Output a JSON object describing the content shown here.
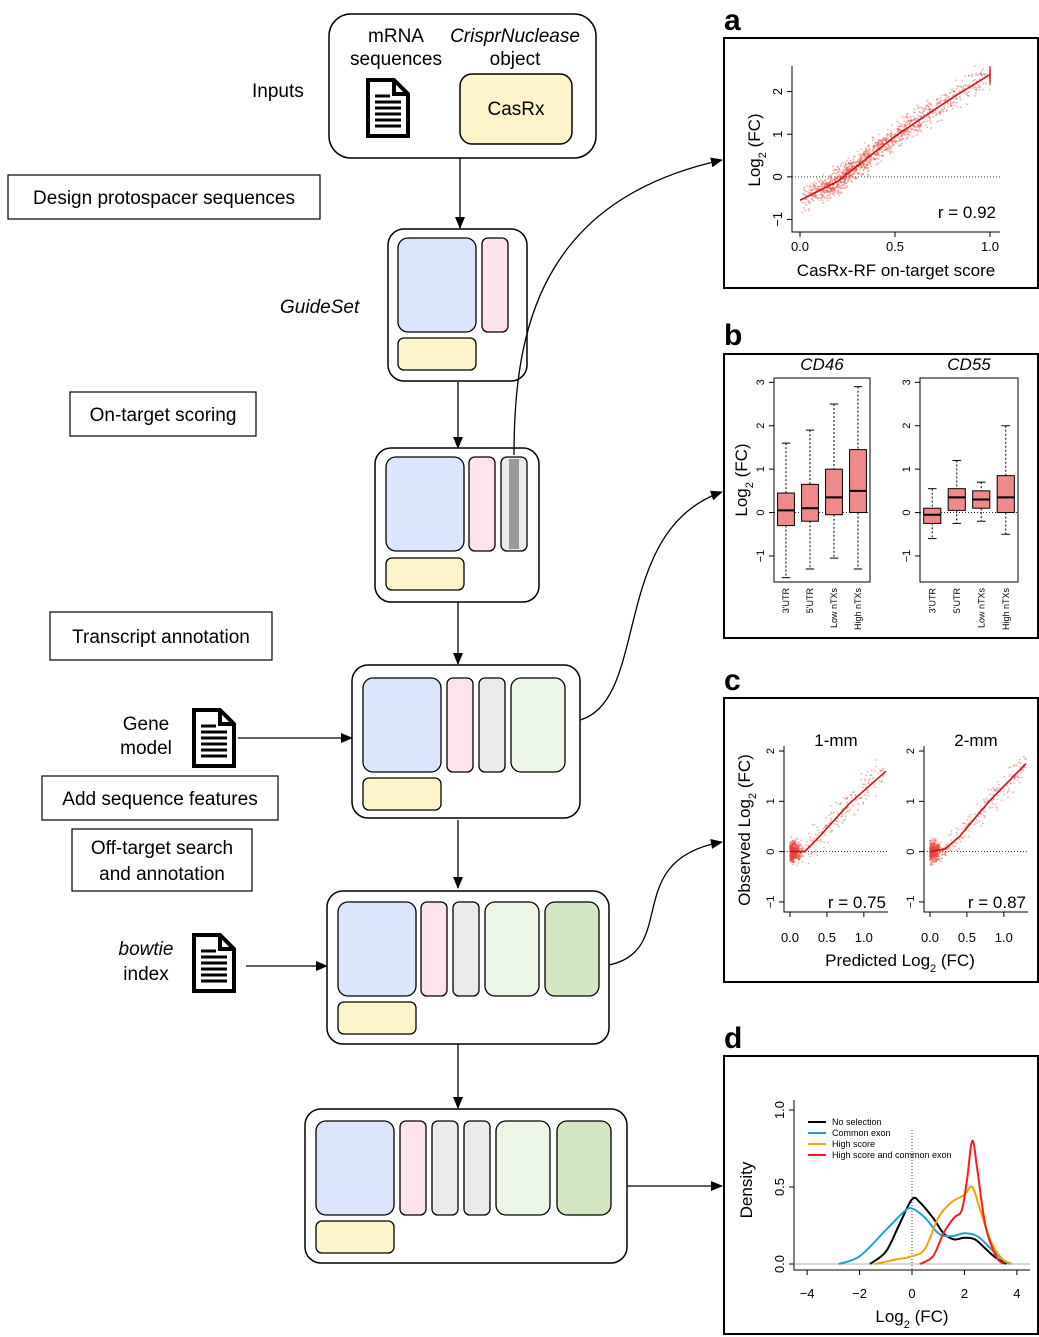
{
  "workflow": {
    "inputs_label": "Inputs",
    "mrna_label": "mRNA sequences",
    "nuclease_label": "CrisprNuclease",
    "nuclease_object_label": "object",
    "casrx_label": "CasRx",
    "guideset_label": "GuideSet",
    "steps": {
      "design": "Design protospacer sequences",
      "ontarget": "On-target scoring",
      "transcript": "Transcript annotation",
      "offtarget_1": "Off-target search",
      "offtarget_2": "and annotation",
      "features": "Add sequence features"
    },
    "gene_model_1": "Gene",
    "gene_model_2": "model",
    "bowtie_label": "bowtie",
    "index_label": "index"
  },
  "colors": {
    "blue": "#dbe5fb",
    "pink": "#fde4ec",
    "yellow": "#fdf5c9",
    "gray": "#ebebeb",
    "darkgray": "#9a9a9a",
    "lightgreen": "#ecf6e6",
    "green": "#d3e8c2",
    "pointred": "#e8473f",
    "boxred": "#f08a8a"
  },
  "panels": {
    "a": "a",
    "b": "b",
    "c": "c",
    "d": "d"
  },
  "chart_data": [
    {
      "type": "scatter",
      "panel": "a",
      "xlabel": "CasRx-RF on-target score",
      "ylabel": "Log2 (FC)",
      "xlim": [
        0,
        1.0
      ],
      "ylim": [
        -1.2,
        2.6
      ],
      "xticks": [
        "0.0",
        "0.5",
        "1.0"
      ],
      "yticks": [
        "−1",
        "0",
        "1",
        "2"
      ],
      "annotation": "r = 0.92",
      "fit_line": [
        [
          0.0,
          -0.55
        ],
        [
          0.2,
          -0.1
        ],
        [
          0.5,
          0.95
        ],
        [
          0.8,
          1.85
        ],
        [
          1.0,
          2.4
        ]
      ]
    },
    {
      "type": "box",
      "panel": "b",
      "ylabel": "Log2 (FC)",
      "ylim": [
        -1.6,
        3.1
      ],
      "yticks": [
        "−1",
        "0",
        "1",
        "2",
        "3"
      ],
      "categories": [
        "3'UTR",
        "5'UTR",
        "Low nTXs",
        "High nTXs"
      ],
      "groups": [
        {
          "name": "CD46",
          "boxes": [
            {
              "min": -1.5,
              "q1": -0.3,
              "median": 0.05,
              "q3": 0.45,
              "max": 1.6
            },
            {
              "min": -1.3,
              "q1": -0.2,
              "median": 0.1,
              "q3": 0.65,
              "max": 1.9
            },
            {
              "min": -1.05,
              "q1": -0.05,
              "median": 0.35,
              "q3": 1.0,
              "max": 2.5
            },
            {
              "min": -1.3,
              "q1": 0.0,
              "median": 0.5,
              "q3": 1.45,
              "max": 2.9
            }
          ]
        },
        {
          "name": "CD55",
          "boxes": [
            {
              "min": -0.6,
              "q1": -0.25,
              "median": -0.05,
              "q3": 0.1,
              "max": 0.55
            },
            {
              "min": -0.25,
              "q1": 0.05,
              "median": 0.35,
              "q3": 0.55,
              "max": 1.2
            },
            {
              "min": -0.2,
              "q1": 0.1,
              "median": 0.3,
              "q3": 0.5,
              "max": 0.7
            },
            {
              "min": -0.5,
              "q1": 0.0,
              "median": 0.35,
              "q3": 0.85,
              "max": 2.0
            }
          ]
        }
      ]
    },
    {
      "type": "scatter",
      "panel": "c",
      "xlabel": "Predicted Log2 (FC)",
      "ylabel": "Observed Log2 (FC)",
      "xlim": [
        0,
        1.3
      ],
      "ylim": [
        -1.2,
        2.1
      ],
      "xticks": [
        "0.0",
        "0.5",
        "1.0"
      ],
      "yticks": [
        "−1",
        "0",
        "1",
        "2"
      ],
      "facets": [
        {
          "name": "1-mm",
          "annotation": "r = 0.75",
          "fit_line": [
            [
              0.0,
              0.0
            ],
            [
              0.2,
              0.0
            ],
            [
              0.4,
              0.3
            ],
            [
              0.8,
              0.95
            ],
            [
              1.3,
              1.6
            ]
          ]
        },
        {
          "name": "2-mm",
          "annotation": "r = 0.87",
          "fit_line": [
            [
              0.0,
              0.0
            ],
            [
              0.2,
              0.05
            ],
            [
              0.4,
              0.3
            ],
            [
              0.8,
              1.0
            ],
            [
              1.3,
              1.75
            ]
          ]
        }
      ]
    },
    {
      "type": "line",
      "panel": "d",
      "xlabel": "Log2 (FC)",
      "ylabel": "Density",
      "xlim": [
        -4.5,
        4.5
      ],
      "ylim": [
        0,
        1.0
      ],
      "xticks": [
        "−4",
        "−2",
        "0",
        "2",
        "4"
      ],
      "yticks": [
        "0.0",
        "0.5",
        "1.0"
      ],
      "series": [
        {
          "name": "No selection",
          "color": "#000000",
          "points": [
            [
              -1.6,
              0
            ],
            [
              -1,
              0.08
            ],
            [
              -0.5,
              0.25
            ],
            [
              0,
              0.42
            ],
            [
              0.3,
              0.4
            ],
            [
              0.8,
              0.3
            ],
            [
              1.2,
              0.2
            ],
            [
              1.6,
              0.16
            ],
            [
              2.0,
              0.17
            ],
            [
              2.4,
              0.16
            ],
            [
              2.8,
              0.1
            ],
            [
              3.2,
              0.04
            ],
            [
              3.6,
              0
            ]
          ]
        },
        {
          "name": "Common exon",
          "color": "#1fa3c4",
          "points": [
            [
              -2.8,
              0
            ],
            [
              -2,
              0.05
            ],
            [
              -1,
              0.22
            ],
            [
              -0.3,
              0.34
            ],
            [
              0,
              0.36
            ],
            [
              0.5,
              0.3
            ],
            [
              1.0,
              0.2
            ],
            [
              1.5,
              0.18
            ],
            [
              2.0,
              0.2
            ],
            [
              2.5,
              0.18
            ],
            [
              3.0,
              0.1
            ],
            [
              3.5,
              0.02
            ],
            [
              3.8,
              0
            ]
          ]
        },
        {
          "name": "High score",
          "color": "#f5a300",
          "points": [
            [
              -1.4,
              0
            ],
            [
              -0.6,
              0.03
            ],
            [
              0,
              0.05
            ],
            [
              0.5,
              0.1
            ],
            [
              1.0,
              0.3
            ],
            [
              1.5,
              0.4
            ],
            [
              2.0,
              0.45
            ],
            [
              2.3,
              0.5
            ],
            [
              2.6,
              0.35
            ],
            [
              3.0,
              0.15
            ],
            [
              3.4,
              0.04
            ],
            [
              3.8,
              0
            ]
          ]
        },
        {
          "name": "High score and common exon",
          "color": "#ff1a1a",
          "points": [
            [
              0.3,
              0
            ],
            [
              0.8,
              0.05
            ],
            [
              1.2,
              0.2
            ],
            [
              1.6,
              0.3
            ],
            [
              1.9,
              0.35
            ],
            [
              2.1,
              0.55
            ],
            [
              2.3,
              0.8
            ],
            [
              2.5,
              0.6
            ],
            [
              2.8,
              0.25
            ],
            [
              3.2,
              0.05
            ],
            [
              3.5,
              0
            ]
          ]
        }
      ]
    }
  ]
}
